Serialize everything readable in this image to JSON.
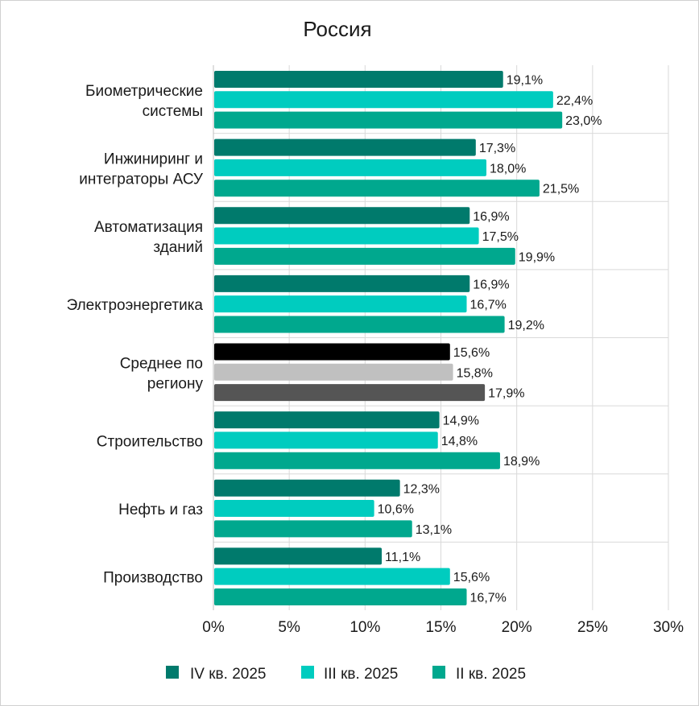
{
  "chart_data": {
    "type": "bar",
    "orientation": "horizontal",
    "title": "Россия",
    "categories": [
      [
        "Биометрические",
        "системы"
      ],
      [
        "Инжиниринг и",
        "интеграторы АСУ"
      ],
      [
        "Автоматизация",
        "зданий"
      ],
      [
        "Электроэнергетика"
      ],
      [
        "Среднее по",
        "региону"
      ],
      [
        "Строительство"
      ],
      [
        "Нефть и газ"
      ],
      [
        "Производство"
      ]
    ],
    "series": [
      {
        "name": "IV кв. 2025",
        "color": "#007a6c",
        "values": [
          19.1,
          17.3,
          16.9,
          16.9,
          15.6,
          14.9,
          12.3,
          11.1
        ],
        "labels": [
          "19,1%",
          "17,3%",
          "16,9%",
          "16,9%",
          "15,6%",
          "14,9%",
          "12,3%",
          "11,1%"
        ]
      },
      {
        "name": "III кв. 2025",
        "color": "#00ccbf",
        "values": [
          22.4,
          18.0,
          17.5,
          16.7,
          15.8,
          14.8,
          10.6,
          15.6
        ],
        "labels": [
          "22,4%",
          "18,0%",
          "17,5%",
          "16,7%",
          "15,8%",
          "14,8%",
          "10,6%",
          "15,6%"
        ]
      },
      {
        "name": "II кв. 2025",
        "color": "#00a88e",
        "values": [
          23.0,
          21.5,
          19.9,
          19.2,
          17.9,
          18.9,
          13.1,
          16.7
        ],
        "labels": [
          "23,0%",
          "21,5%",
          "19,9%",
          "19,2%",
          "17,9%",
          "18,9%",
          "13,1%",
          "16,7%"
        ]
      }
    ],
    "highlight_category": 4,
    "highlight_colors": [
      "#000000",
      "#c0c0c0",
      "#555555"
    ],
    "xlim": [
      0,
      30
    ],
    "xticks": [
      0,
      5,
      10,
      15,
      20,
      25,
      30
    ],
    "xtick_labels": [
      "0%",
      "5%",
      "10%",
      "15%",
      "20%",
      "25%",
      "30%"
    ],
    "grid": true,
    "legend_position": "bottom"
  }
}
